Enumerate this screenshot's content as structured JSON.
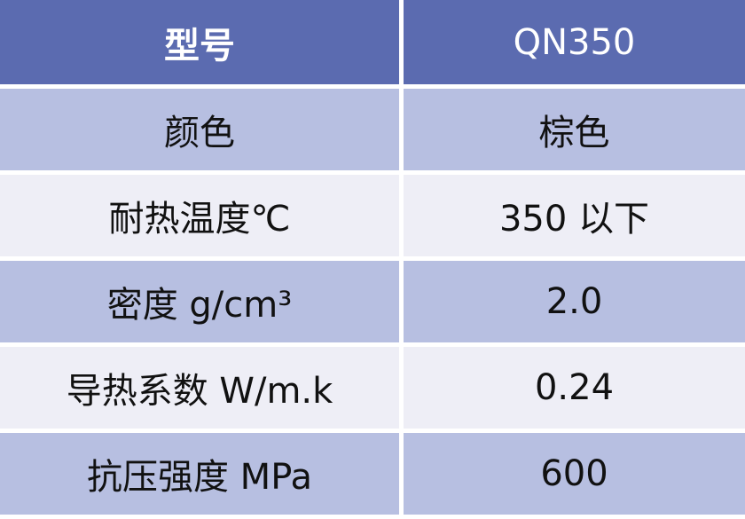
{
  "header": {
    "label": "型号",
    "value": "QN350"
  },
  "rows": [
    {
      "label": "颜色",
      "value": "棕色"
    },
    {
      "label": "耐热温度℃",
      "value": "350 以下"
    },
    {
      "label": "密度 g/cm³",
      "value": "2.0"
    },
    {
      "label": "导热系数 W/m.k",
      "value": "0.24"
    },
    {
      "label": "抗压强度 MPa",
      "value": "600"
    }
  ],
  "colors": {
    "header": "#5b6bb0",
    "row_odd": "#b7bfe1",
    "row_even": "#eeeef6"
  }
}
